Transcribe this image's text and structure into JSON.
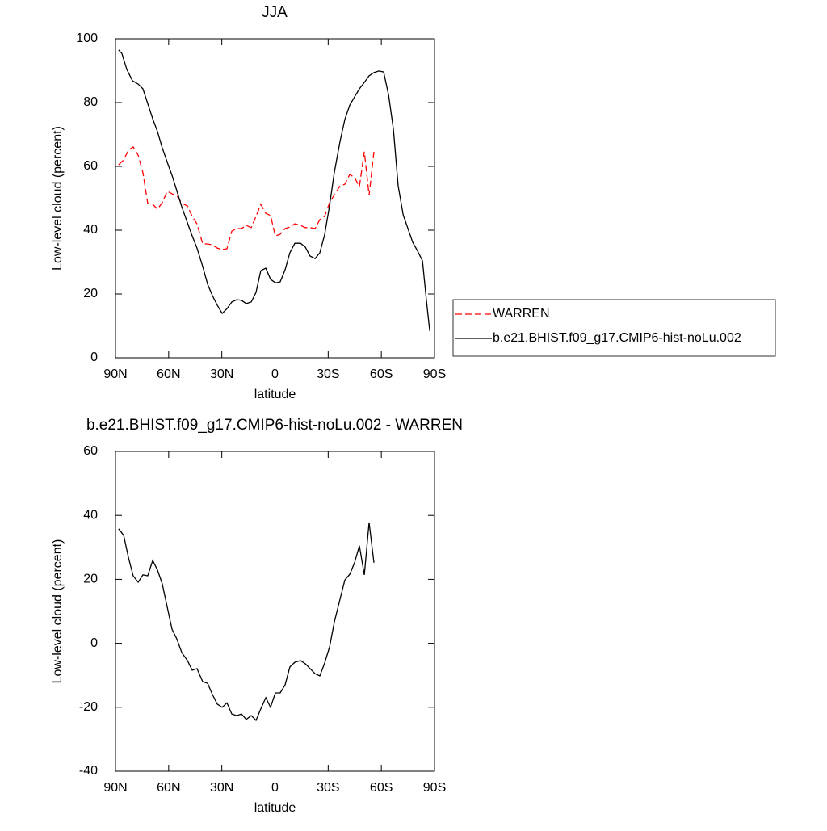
{
  "chart_data": [
    {
      "type": "line",
      "title": "JJA",
      "xlabel": "latitude",
      "ylabel": "Low-level cloud (percent)",
      "xlim": [
        90,
        -90
      ],
      "xticks": [
        {
          "value": 90,
          "label": "90N"
        },
        {
          "value": 60,
          "label": "60N"
        },
        {
          "value": 30,
          "label": "30N"
        },
        0,
        {
          "value": -30,
          "label": "30S"
        },
        {
          "value": -60,
          "label": "60S"
        },
        {
          "value": -90,
          "label": "90S"
        }
      ],
      "ylim": [
        0,
        100
      ],
      "yticks": [
        0,
        20,
        40,
        60,
        80,
        100
      ],
      "legend": "right",
      "series": [
        {
          "name": "WARREN",
          "color": "#ff0000",
          "style": "dashed",
          "x": [
            88.2,
            85.4,
            82.7,
            80,
            77.2,
            74.5,
            71.8,
            69,
            66.3,
            63.6,
            60.8,
            58.1,
            55.4,
            52.6,
            49.4,
            46.7,
            44,
            40.8,
            38,
            35.3,
            32.6,
            29.8,
            27.1,
            24.4,
            21.6,
            18.9,
            16.2,
            13.4,
            10.7,
            8,
            5.2,
            2.5,
            -0.2,
            -2.9,
            -5.7,
            -8.4,
            -11.2,
            -14.4,
            -17.1,
            -19.8,
            -22.6,
            -25.3,
            -28,
            -30.8,
            -33.5,
            -36.7,
            -39.4,
            -42.2,
            -44.9,
            -47.6,
            -50.4,
            -53.1,
            -55.8
          ],
          "values": [
            60.5,
            62,
            65.1,
            66.1,
            63.5,
            58,
            48.4,
            48.1,
            46.6,
            48.6,
            52.2,
            51.4,
            50.9,
            48.4,
            47.6,
            44.3,
            42,
            35.7,
            35.7,
            35.4,
            34.4,
            33.9,
            34.2,
            39.7,
            40.5,
            40.5,
            41.5,
            40.8,
            44.3,
            48.1,
            45.3,
            44.6,
            38.2,
            38.7,
            40.5,
            41,
            42,
            41.5,
            40.8,
            40.8,
            40.5,
            43.3,
            44.3,
            48.6,
            51.1,
            53.9,
            54.4,
            57.5,
            56.5,
            53.7,
            64.6,
            50.9,
            64.6
          ]
        },
        {
          "name": "b.e21.BHIST.f09_g17.CMIP6-hist-noLu.002",
          "color": "#000000",
          "style": "solid",
          "x": [
            88.2,
            86.4,
            83.6,
            80.4,
            77.2,
            74.5,
            71.8,
            69,
            66.3,
            63.6,
            60.8,
            58.1,
            55.4,
            52.6,
            49.4,
            46.7,
            44,
            40.8,
            38,
            35.3,
            32.6,
            29.8,
            27.1,
            24.4,
            21.6,
            18.9,
            16.2,
            13.4,
            10.7,
            8,
            5.2,
            2.5,
            -0.2,
            -2.9,
            -5.7,
            -8.4,
            -11.2,
            -14.4,
            -17.1,
            -19.8,
            -22.6,
            -25.3,
            -28,
            -30.8,
            -33.5,
            -36.7,
            -39.4,
            -42.2,
            -44.9,
            -47.6,
            -50.4,
            -53.1,
            -55.8,
            -58.6,
            -61.3,
            -64.1,
            -66.8,
            -69.5,
            -72.3,
            -75,
            -77.7,
            -80.5,
            -83.2,
            -85.5,
            -87.3
          ],
          "values": [
            96.5,
            95.4,
            90.4,
            86.8,
            85.8,
            84.3,
            79.7,
            74.9,
            70.9,
            65.8,
            61.3,
            57.2,
            52.4,
            47.3,
            42.3,
            38.2,
            34.4,
            28.6,
            23,
            19.5,
            16.5,
            13.9,
            15.4,
            17.5,
            18.2,
            18,
            17,
            17.5,
            20.5,
            27.3,
            28.1,
            24.6,
            23.5,
            23.8,
            27.6,
            32.9,
            35.9,
            35.9,
            34.7,
            31.9,
            31.1,
            32.9,
            38.5,
            47.8,
            58.2,
            67.8,
            74.7,
            79.2,
            81.8,
            84.3,
            86.3,
            88.4,
            89.4,
            89.9,
            89.6,
            82.3,
            71.6,
            53.9,
            44.8,
            40.5,
            36.2,
            33.4,
            30.4,
            17.7,
            8.4
          ]
        }
      ]
    },
    {
      "type": "line",
      "title": "b.e21.BHIST.f09_g17.CMIP6-hist-noLu.002 - WARREN",
      "xlabel": "latitude",
      "ylabel": "Low-level cloud (percent)",
      "xlim": [
        90,
        -90
      ],
      "xticks": [
        {
          "value": 90,
          "label": "90N"
        },
        {
          "value": 60,
          "label": "60N"
        },
        {
          "value": 30,
          "label": "30N"
        },
        0,
        {
          "value": -30,
          "label": "30S"
        },
        {
          "value": -60,
          "label": "60S"
        },
        {
          "value": -90,
          "label": "90S"
        }
      ],
      "ylim": [
        -40,
        60
      ],
      "yticks": [
        -40,
        -20,
        0,
        20,
        40,
        60
      ],
      "series": [
        {
          "color": "#000000",
          "style": "solid",
          "x": [
            88.2,
            85.4,
            82.7,
            80,
            77.2,
            74.5,
            71.8,
            69,
            66.3,
            63.6,
            60.8,
            58.1,
            55.4,
            52.6,
            49.4,
            46.7,
            44,
            40.8,
            38,
            35.3,
            32.6,
            29.8,
            27.1,
            24.4,
            21.6,
            18.9,
            16.2,
            13.4,
            10.7,
            8,
            5.2,
            2.5,
            -0.2,
            -2.9,
            -5.7,
            -8.4,
            -11.2,
            -14.4,
            -17.1,
            -19.8,
            -22.6,
            -25.3,
            -28,
            -30.8,
            -33.5,
            -36.7,
            -39.4,
            -42.2,
            -44.9,
            -47.6,
            -50.4,
            -53.1,
            -55.8
          ],
          "values": [
            35.8,
            33.8,
            26.9,
            21.1,
            19.1,
            21.4,
            21.1,
            25.9,
            22.9,
            18.6,
            11.3,
            4.4,
            1.4,
            -2.9,
            -5.4,
            -8.4,
            -7.9,
            -12,
            -12.5,
            -16,
            -19,
            -20,
            -18.6,
            -22.1,
            -22.6,
            -22.1,
            -23.8,
            -22.6,
            -24.1,
            -20.5,
            -17,
            -20,
            -15.5,
            -15.5,
            -13,
            -7.4,
            -5.9,
            -5.4,
            -6.4,
            -7.9,
            -9.5,
            -10.2,
            -6.2,
            -1.1,
            6.7,
            13.8,
            19.8,
            21.6,
            25.2,
            30.5,
            21.4,
            37.8,
            25.2
          ]
        }
      ]
    }
  ]
}
